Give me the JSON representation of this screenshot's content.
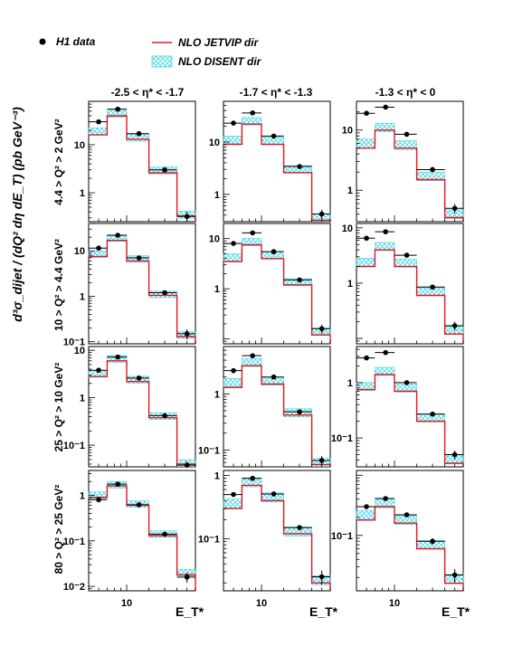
{
  "legend": {
    "data_label": "H1 data",
    "jetvip_label": "NLO JETVIP dir",
    "disent_label": "NLO DISENT dir"
  },
  "colors": {
    "data": "#000000",
    "jetvip": "#e8141c",
    "disent": "#3fd6e6"
  },
  "y_axis_title": "d³σ_dijet / (dQ² dη dE_T) (pb GeV⁻³)",
  "x_axis_title": "E_T*",
  "x_tick_label": "10",
  "column_titles": [
    "-2.5 < η* < -1.7",
    "-1.7 < η* < -1.3",
    "-1.3 < η* < 0"
  ],
  "row_labels": [
    "4.4 > Q² > 2 GeV²",
    "10 > Q² > 4.4 GeV²",
    "25 > Q² > 10 GeV²",
    "80 > Q² > 25 GeV²"
  ],
  "chart_data": {
    "type": "histogram-grid",
    "x_scale": "log",
    "y_scale": "log",
    "x_bin_edges": [
      5,
      7,
      10,
      15,
      25,
      35
    ],
    "x_points": [
      6,
      8.5,
      12.5,
      20,
      30
    ],
    "panels": [
      {
        "row": 0,
        "col": 0,
        "ylim": [
          0.25,
          80
        ],
        "yticks": [
          1,
          10
        ],
        "data": [
          30,
          55,
          17,
          3.0,
          0.32
        ],
        "err": [
          0.08,
          0.06,
          0.08,
          0.1,
          0.25
        ],
        "jetvip": [
          16,
          40,
          13,
          2.6,
          0.33
        ],
        "disent": [
          19,
          44,
          14,
          2.9,
          0.35
        ]
      },
      {
        "row": 0,
        "col": 1,
        "ylim": [
          0.3,
          60
        ],
        "yticks": [
          1,
          10
        ],
        "data": [
          23,
          36,
          13,
          3.4,
          0.42
        ],
        "err": [
          0.08,
          0.06,
          0.08,
          0.1,
          0.2
        ],
        "jetvip": [
          9,
          22,
          9,
          2.6,
          0.32
        ],
        "disent": [
          11,
          25,
          10.5,
          3.0,
          0.36
        ]
      },
      {
        "row": 0,
        "col": 2,
        "ylim": [
          0.3,
          30
        ],
        "yticks": [
          1,
          10
        ],
        "data": [
          19,
          24,
          8.5,
          2.2,
          0.5
        ],
        "err": [
          0.07,
          0.06,
          0.08,
          0.1,
          0.18
        ],
        "jetvip": [
          5,
          10,
          5,
          1.5,
          0.35
        ],
        "disent": [
          6,
          11,
          5.6,
          1.7,
          0.4
        ]
      },
      {
        "row": 1,
        "col": 0,
        "ylim": [
          0.09,
          40
        ],
        "yticks": [
          0.1,
          1,
          10
        ],
        "data": [
          11.5,
          22,
          7,
          1.2,
          0.15
        ],
        "err": [
          0.08,
          0.06,
          0.08,
          0.1,
          0.25
        ],
        "jetvip": [
          7.5,
          17,
          6,
          1.05,
          0.13
        ],
        "disent": [
          8.5,
          19,
          6.6,
          1.1,
          0.14
        ]
      },
      {
        "row": 1,
        "col": 1,
        "ylim": [
          0.08,
          20
        ],
        "yticks": [
          1,
          10
        ],
        "data": [
          8,
          13,
          5.5,
          1.5,
          0.16
        ],
        "err": [
          0.08,
          0.06,
          0.08,
          0.1,
          0.2
        ],
        "jetvip": [
          3.5,
          7.5,
          4,
          1.2,
          0.12
        ],
        "disent": [
          4.2,
          8.5,
          4.6,
          1.35,
          0.14
        ]
      },
      {
        "row": 1,
        "col": 2,
        "ylim": [
          0.08,
          12
        ],
        "yticks": [
          1,
          10
        ],
        "data": [
          6.5,
          8.5,
          3.2,
          0.85,
          0.17
        ],
        "err": [
          0.07,
          0.06,
          0.08,
          0.1,
          0.18
        ],
        "jetvip": [
          2,
          4,
          2,
          0.6,
          0.12
        ],
        "disent": [
          2.4,
          4.6,
          2.3,
          0.7,
          0.14
        ]
      },
      {
        "row": 2,
        "col": 0,
        "ylim": [
          0.035,
          12
        ],
        "yticks": [
          0.1,
          1,
          10
        ],
        "data": [
          3.8,
          7.2,
          2.6,
          0.42,
          0.038
        ],
        "err": [
          0.08,
          0.06,
          0.08,
          0.1,
          0.2
        ],
        "jetvip": [
          2.8,
          6,
          2.2,
          0.38,
          0.04
        ],
        "disent": [
          3.2,
          6.6,
          2.4,
          0.41,
          0.042
        ]
      },
      {
        "row": 2,
        "col": 1,
        "ylim": [
          0.05,
          7
        ],
        "yticks": [
          0.1,
          1
        ],
        "data": [
          2.6,
          4.8,
          2.0,
          0.48,
          0.065
        ],
        "err": [
          0.08,
          0.06,
          0.08,
          0.1,
          0.2
        ],
        "jetvip": [
          1.3,
          3.2,
          1.5,
          0.42,
          0.055
        ],
        "disent": [
          1.6,
          3.6,
          1.7,
          0.46,
          0.06
        ]
      },
      {
        "row": 2,
        "col": 2,
        "ylim": [
          0.03,
          4.5
        ],
        "yticks": [
          0.1,
          1
        ],
        "data": [
          2.8,
          3.5,
          1.0,
          0.27,
          0.05
        ],
        "err": [
          0.07,
          0.06,
          0.08,
          0.1,
          0.18
        ],
        "jetvip": [
          0.75,
          1.4,
          0.7,
          0.2,
          0.035
        ],
        "disent": [
          0.85,
          1.6,
          0.8,
          0.23,
          0.04
        ]
      },
      {
        "row": 3,
        "col": 0,
        "ylim": [
          0.008,
          3.5
        ],
        "yticks": [
          0.01,
          0.1,
          1
        ],
        "data": [
          0.8,
          1.75,
          0.62,
          0.14,
          0.016
        ],
        "err": [
          0.08,
          0.06,
          0.08,
          0.1,
          0.25
        ],
        "jetvip": [
          0.9,
          1.6,
          0.6,
          0.13,
          0.018
        ],
        "disent": [
          1.0,
          1.7,
          0.64,
          0.14,
          0.02
        ]
      },
      {
        "row": 3,
        "col": 1,
        "ylim": [
          0.015,
          1.2
        ],
        "yticks": [
          0.1,
          1
        ],
        "data": [
          0.5,
          0.9,
          0.51,
          0.15,
          0.025
        ],
        "err": [
          0.08,
          0.06,
          0.08,
          0.1,
          0.25
        ],
        "jetvip": [
          0.3,
          0.7,
          0.4,
          0.12,
          0.02
        ],
        "disent": [
          0.36,
          0.78,
          0.45,
          0.13,
          0.022
        ]
      },
      {
        "row": 3,
        "col": 2,
        "ylim": [
          0.012,
          1.2
        ],
        "yticks": [
          0.1
        ],
        "data": [
          0.3,
          0.41,
          0.22,
          0.08,
          0.022
        ],
        "err": [
          0.08,
          0.06,
          0.08,
          0.12,
          0.25
        ],
        "jetvip": [
          0.18,
          0.3,
          0.16,
          0.06,
          0.016
        ],
        "disent": [
          0.22,
          0.34,
          0.18,
          0.07,
          0.019
        ]
      }
    ]
  }
}
